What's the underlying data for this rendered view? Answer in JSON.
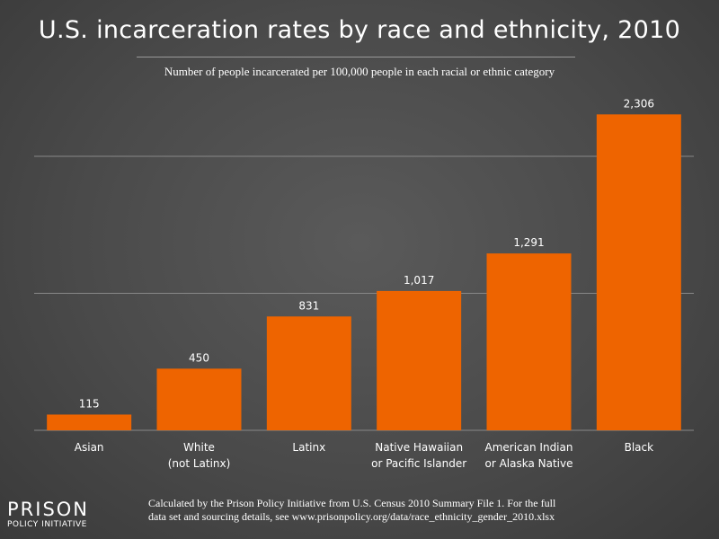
{
  "title": "U.S. incarceration rates by race and ethnicity, 2010",
  "subtitle": "Number of people incarcerated per 100,000 people in each racial or ethnic category",
  "footer": {
    "source_line1": "Calculated by the Prison Policy Initiative from U.S. Census 2010 Summary File 1. For the full",
    "source_line2": "data set and sourcing details, see www.prisonpolicy.org/data/race_ethnicity_gender_2010.xlsx"
  },
  "logo": {
    "word": "PRISON",
    "sub": "POLICY INITIATIVE"
  },
  "colors": {
    "bar": "#ee6400",
    "gridline": "#888888",
    "text": "#ffffff"
  },
  "chart_data": {
    "type": "bar",
    "categories": [
      [
        "Asian"
      ],
      [
        "White",
        "(not Latinx)"
      ],
      [
        "Latinx"
      ],
      [
        "Native Hawaiian",
        "or Pacific Islander"
      ],
      [
        "American Indian",
        "or Alaska Native"
      ],
      [
        "Black"
      ]
    ],
    "values": [
      115,
      450,
      831,
      1017,
      1291,
      2306
    ],
    "value_labels": [
      "115",
      "450",
      "831",
      "1,017",
      "1,291",
      "2,306"
    ],
    "ylim": [
      0,
      2500
    ],
    "gridlines": [
      0,
      1000,
      2000
    ],
    "grid": true,
    "legend": false
  }
}
